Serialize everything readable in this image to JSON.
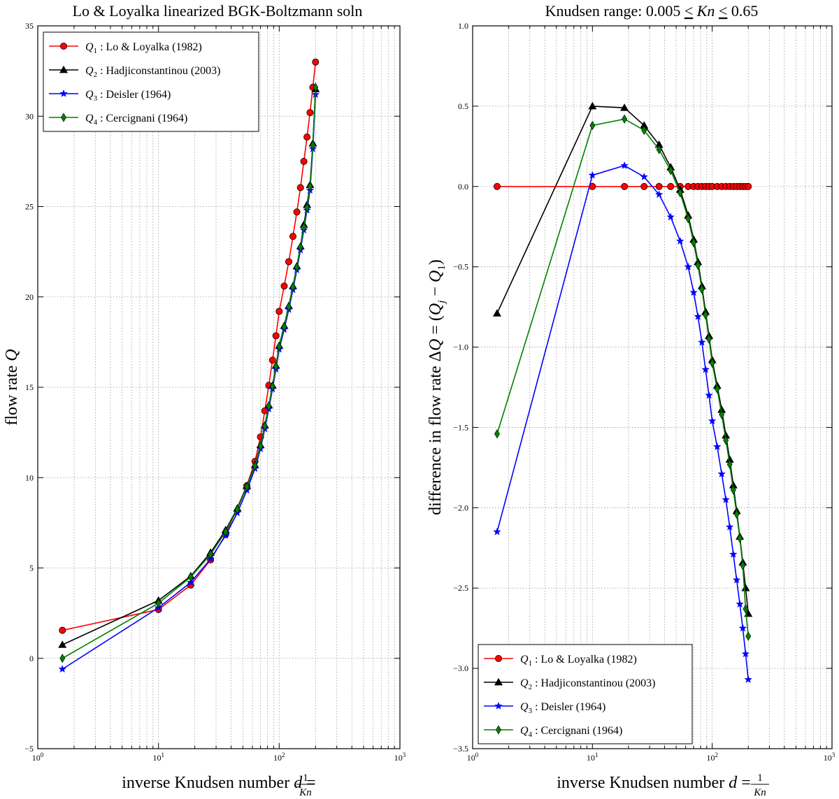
{
  "chart_data": [
    {
      "type": "line",
      "title": "Lo & Loyalka linearized BGK-Boltzmann soln",
      "xlabel": "inverse Knudsen number d = 1/Kn",
      "ylabel": "flow rate Q",
      "xscale": "log",
      "xlim": [
        1,
        1000
      ],
      "ylim": [
        -5,
        35
      ],
      "x_tick_labels": [
        "10^0",
        "10^1",
        "10^2",
        "10^3"
      ],
      "y_tick_labels": [
        "−5",
        "0",
        "5",
        "10",
        "15",
        "20",
        "25",
        "30",
        "35"
      ],
      "grid": true,
      "legend_position": "top-left",
      "series": [
        {
          "name": "Q1 : Lo & Loyalka (1982)",
          "sub": "1",
          "label": ": Lo & Loyalka (1982)",
          "color": "#ff0000",
          "marker": "circle",
          "x": [
            1.6,
            10,
            18.5,
            27,
            36,
            54,
            63,
            70,
            76,
            82,
            88,
            94,
            100,
            110,
            120,
            130,
            140,
            150,
            160,
            170,
            180,
            190,
            200
          ],
          "y": [
            1.55,
            2.7,
            4.05,
            5.45,
            6.85,
            9.55,
            10.9,
            12.25,
            13.7,
            15.1,
            16.5,
            17.85,
            19.2,
            20.6,
            21.95,
            23.35,
            24.7,
            26.05,
            27.5,
            28.85,
            30.2,
            31.6,
            33.0
          ]
        },
        {
          "name": "Q2 : Hadjiconstantinou (2003)",
          "sub": "2",
          "label": ": Hadjiconstantinou (2003)",
          "color": "#000000",
          "marker": "triangle",
          "x": [
            1.6,
            10,
            18.5,
            27,
            36,
            45,
            54,
            63,
            70,
            76,
            82,
            88,
            94,
            100,
            110,
            120,
            130,
            140,
            150,
            160,
            170,
            180,
            190,
            200
          ],
          "y": [
            0.75,
            3.2,
            4.55,
            5.85,
            7.1,
            8.3,
            9.55,
            10.7,
            11.8,
            12.9,
            14.0,
            15.1,
            16.2,
            17.3,
            18.4,
            19.5,
            20.6,
            21.7,
            22.8,
            24.0,
            25.1,
            26.2,
            28.5,
            31.5
          ]
        },
        {
          "name": "Q3 : Deisler (1964)",
          "sub": "3",
          "label": ": Deisler (1964)",
          "color": "#0000ff",
          "marker": "star",
          "x": [
            1.6,
            10,
            18.5,
            27,
            36,
            45,
            54,
            63,
            70,
            76,
            82,
            88,
            94,
            100,
            110,
            120,
            130,
            140,
            150,
            160,
            170,
            180,
            190,
            200
          ],
          "y": [
            -0.6,
            2.8,
            4.2,
            5.5,
            6.8,
            8.05,
            9.3,
            10.5,
            11.6,
            12.7,
            13.8,
            14.9,
            16.0,
            17.1,
            18.2,
            19.3,
            20.4,
            21.5,
            22.6,
            23.7,
            24.8,
            25.9,
            28.2,
            31.2
          ]
        },
        {
          "name": "Q4 : Cercignani (1964)",
          "sub": "4",
          "label": ": Cercignani (1964)",
          "color": "#008000",
          "marker": "diamond",
          "x": [
            1.6,
            10,
            18.5,
            27,
            36,
            45,
            54,
            63,
            70,
            76,
            82,
            88,
            94,
            100,
            110,
            120,
            130,
            140,
            150,
            160,
            170,
            180,
            190,
            200
          ],
          "y": [
            0.0,
            3.05,
            4.5,
            5.75,
            7.0,
            8.25,
            9.5,
            10.65,
            11.75,
            12.85,
            13.95,
            15.05,
            16.15,
            17.25,
            18.35,
            19.45,
            20.55,
            21.65,
            22.75,
            23.85,
            24.95,
            26.1,
            28.4,
            31.6
          ]
        }
      ]
    },
    {
      "type": "line",
      "title": "Knudsen range: 0.005 ≤ Kn ≤ 0.65",
      "xlabel": "inverse Knudsen number d = 1/Kn",
      "ylabel": "difference in flow rate ΔQ = (Qj − Q1)",
      "xscale": "log",
      "xlim": [
        1,
        1000
      ],
      "ylim": [
        -3.5,
        1.0
      ],
      "x_tick_labels": [
        "10^0",
        "10^1",
        "10^2",
        "10^3"
      ],
      "y_tick_labels": [
        "−3.5",
        "−3.0",
        "−2.5",
        "−2.0",
        "−1.5",
        "−1.0",
        "−0.5",
        "0.0",
        "0.5",
        "1.0"
      ],
      "grid": true,
      "legend_position": "bottom-left",
      "series": [
        {
          "name": "Q1 : Lo & Loyalka (1982)",
          "sub": "1",
          "label": ": Lo & Loyalka (1982)",
          "color": "#ff0000",
          "marker": "circle",
          "x": [
            1.6,
            10,
            18.5,
            27,
            36,
            45,
            54,
            63,
            70,
            76,
            82,
            88,
            94,
            100,
            110,
            120,
            130,
            140,
            150,
            160,
            170,
            180,
            190,
            200
          ],
          "y": [
            0,
            0,
            0,
            0,
            0,
            0,
            0,
            0,
            0,
            0,
            0,
            0,
            0,
            0,
            0,
            0,
            0,
            0,
            0,
            0,
            0,
            0,
            0,
            0
          ]
        },
        {
          "name": "Q2 : Hadjiconstantinou (2003)",
          "sub": "2",
          "label": ": Hadjiconstantinou (2003)",
          "color": "#000000",
          "marker": "triangle",
          "x": [
            1.6,
            10,
            18.5,
            27,
            36,
            45,
            54,
            63,
            70,
            76,
            82,
            88,
            94,
            100,
            110,
            120,
            130,
            140,
            150,
            160,
            170,
            180,
            190,
            200
          ],
          "y": [
            -0.79,
            0.5,
            0.49,
            0.38,
            0.26,
            0.12,
            -0.02,
            -0.18,
            -0.33,
            -0.47,
            -0.62,
            -0.78,
            -0.93,
            -1.08,
            -1.24,
            -1.39,
            -1.55,
            -1.7,
            -1.86,
            -2.02,
            -2.18,
            -2.34,
            -2.5,
            -2.66
          ]
        },
        {
          "name": "Q3 : Deisler (1964)",
          "sub": "3",
          "label": ": Deisler (1964)",
          "color": "#0000ff",
          "marker": "star",
          "x": [
            1.6,
            10,
            18.5,
            27,
            36,
            45,
            54,
            63,
            70,
            76,
            82,
            88,
            94,
            100,
            110,
            120,
            130,
            140,
            150,
            160,
            170,
            180,
            190,
            200
          ],
          "y": [
            -2.15,
            0.07,
            0.13,
            0.06,
            -0.05,
            -0.19,
            -0.34,
            -0.5,
            -0.66,
            -0.81,
            -0.97,
            -1.14,
            -1.3,
            -1.46,
            -1.62,
            -1.79,
            -1.95,
            -2.12,
            -2.29,
            -2.45,
            -2.6,
            -2.75,
            -2.91,
            -3.07
          ]
        },
        {
          "name": "Q4 : Cercignani (1964)",
          "sub": "4",
          "label": ": Cercignani (1964)",
          "color": "#008000",
          "marker": "diamond",
          "x": [
            1.6,
            10,
            18.5,
            27,
            36,
            45,
            54,
            63,
            70,
            76,
            82,
            88,
            94,
            100,
            110,
            120,
            130,
            140,
            150,
            160,
            170,
            180,
            190,
            200
          ],
          "y": [
            -1.54,
            0.38,
            0.42,
            0.35,
            0.23,
            0.1,
            -0.04,
            -0.2,
            -0.35,
            -0.49,
            -0.64,
            -0.8,
            -0.95,
            -1.1,
            -1.26,
            -1.42,
            -1.58,
            -1.73,
            -1.89,
            -2.04,
            -2.19,
            -2.36,
            -2.63,
            -2.8
          ]
        }
      ]
    }
  ]
}
